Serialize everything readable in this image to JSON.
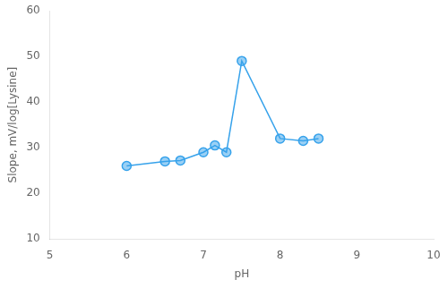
{
  "chart_data": {
    "type": "line",
    "xlabel": "pH",
    "ylabel": "Slope, mV/log[Lysine]",
    "x": [
      6.0,
      6.5,
      6.7,
      7.0,
      7.15,
      7.3,
      7.5,
      8.0,
      8.3,
      8.5
    ],
    "values": [
      26.0,
      27.0,
      27.2,
      29.0,
      30.5,
      29.0,
      49.0,
      32.0,
      31.5,
      32.0
    ],
    "marker": "circle",
    "xlim": [
      5,
      10
    ],
    "ylim": [
      10,
      60
    ],
    "xticks": [
      5,
      6,
      7,
      8,
      9,
      10
    ],
    "yticks": [
      10,
      20,
      30,
      40,
      50,
      60
    ],
    "grid": false
  }
}
